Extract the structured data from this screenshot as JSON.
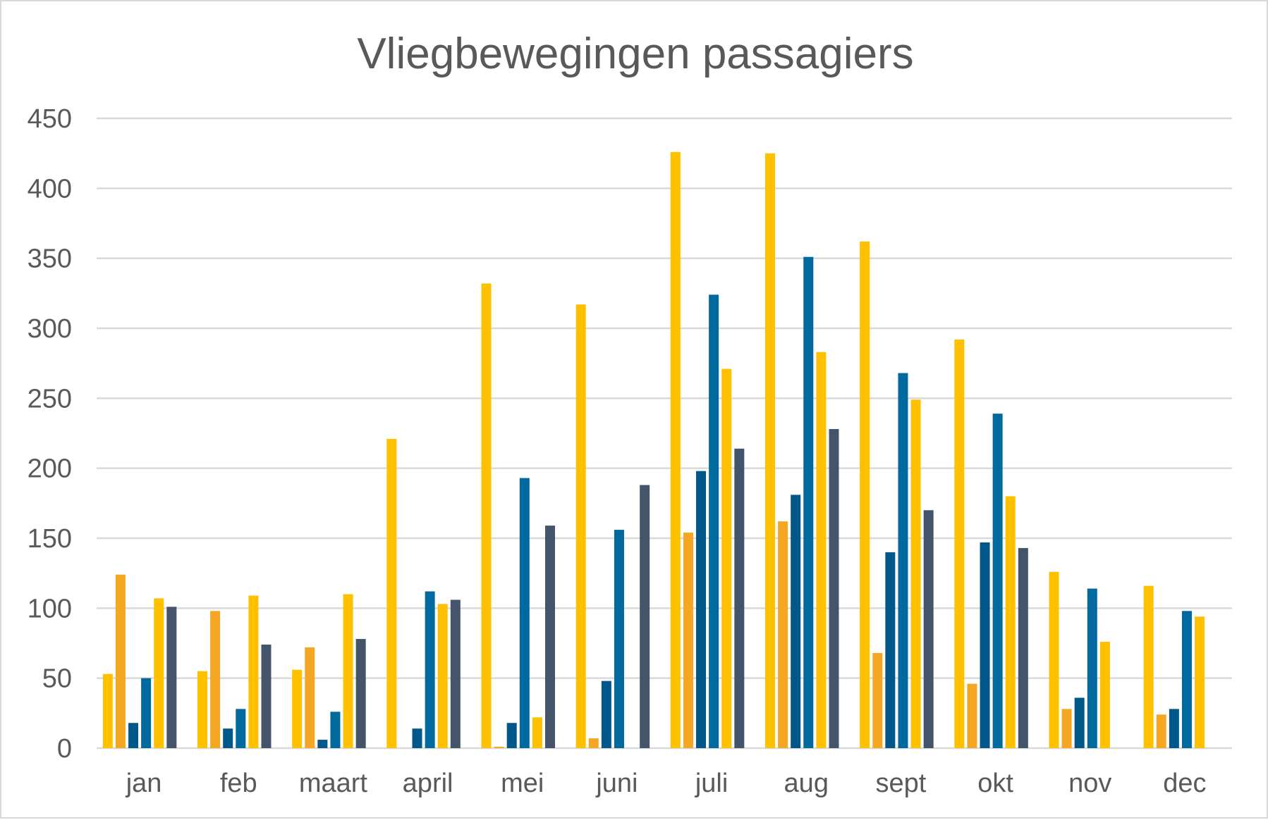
{
  "chart_data": {
    "type": "bar",
    "title": "Vliegbewegingen passagiers",
    "xlabel": "",
    "ylabel": "",
    "ylim": [
      0,
      450
    ],
    "yticks": [
      0,
      50,
      100,
      150,
      200,
      250,
      300,
      350,
      400,
      450
    ],
    "grid": true,
    "legend": "none",
    "categories": [
      "jan",
      "feb",
      "maart",
      "april",
      "mei",
      "juni",
      "juli",
      "aug",
      "sept",
      "okt",
      "nov",
      "dec"
    ],
    "series": [
      {
        "color": "#FFC000",
        "values": [
          53,
          55,
          56,
          221,
          332,
          317,
          426,
          425,
          362,
          292,
          126,
          116
        ]
      },
      {
        "color": "#F5A623",
        "values": [
          124,
          98,
          72,
          0,
          1,
          7,
          154,
          162,
          68,
          46,
          28,
          24
        ]
      },
      {
        "color": "#00578A",
        "values": [
          18,
          14,
          6,
          14,
          18,
          48,
          198,
          181,
          140,
          147,
          36,
          28
        ]
      },
      {
        "color": "#00699E",
        "values": [
          50,
          28,
          26,
          112,
          193,
          156,
          324,
          351,
          268,
          239,
          114,
          98
        ]
      },
      {
        "color": "#FFC000",
        "values": [
          107,
          109,
          110,
          103,
          22,
          0,
          271,
          283,
          249,
          180,
          76,
          94
        ]
      },
      {
        "color": "#44546A",
        "values": [
          101,
          74,
          78,
          106,
          159,
          188,
          214,
          228,
          170,
          143,
          0,
          0
        ]
      }
    ]
  }
}
